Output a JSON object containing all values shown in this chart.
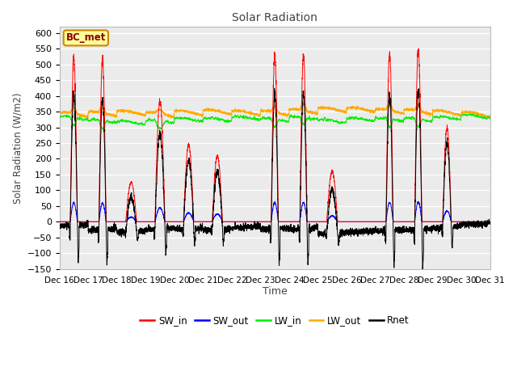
{
  "title": "Solar Radiation",
  "ylabel": "Solar Radiation (W/m2)",
  "xlabel": "Time",
  "annotation": "BC_met",
  "ylim": [
    -150,
    620
  ],
  "yticks": [
    -150,
    -100,
    -50,
    0,
    50,
    100,
    150,
    200,
    250,
    300,
    350,
    400,
    450,
    500,
    550,
    600
  ],
  "xtick_labels": [
    "Dec 16",
    "Dec 17",
    "Dec 18",
    "Dec 19",
    "Dec 20",
    "Dec 21",
    "Dec 22",
    "Dec 23",
    "Dec 24",
    "Dec 25",
    "Dec 26",
    "Dec 27",
    "Dec 28",
    "Dec 29",
    "Dec 30",
    "Dec 31"
  ],
  "legend_entries": [
    "SW_in",
    "SW_out",
    "LW_in",
    "LW_out",
    "Rnet"
  ],
  "legend_colors": [
    "#ff0000",
    "#0000ff",
    "#00ee00",
    "#ffaa00",
    "#000000"
  ],
  "fig_facecolor": "#ffffff",
  "ax_facecolor": "#ebebeb",
  "grid_color": "#ffffff",
  "annotation_facecolor": "#ffff99",
  "annotation_edgecolor": "#cc8800",
  "annotation_textcolor": "#8B0000"
}
